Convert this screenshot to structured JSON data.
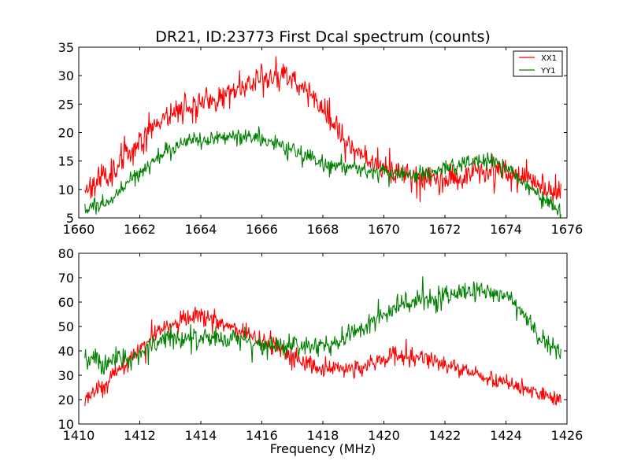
{
  "chart_data": [
    {
      "type": "line",
      "title": "DR21, ID:23773 First Dcal spectrum (counts)",
      "xlabel": "",
      "ylabel": "",
      "xlim": [
        1660,
        1676
      ],
      "ylim": [
        5,
        35
      ],
      "xticks": [
        "1660",
        "1662",
        "1664",
        "1666",
        "1668",
        "1670",
        "1672",
        "1674",
        "1676"
      ],
      "yticks": [
        "5",
        "10",
        "15",
        "20",
        "25",
        "30",
        "35"
      ],
      "legend": {
        "placement": "top-right",
        "entries": [
          "XX1",
          "YY1"
        ]
      },
      "grid": false,
      "series": [
        {
          "name": "XX1",
          "color": "#ff0000",
          "noise": 1.6,
          "x": [
            1660.2,
            1660.6,
            1661.0,
            1661.4,
            1661.8,
            1662.2,
            1662.6,
            1663.0,
            1663.4,
            1663.8,
            1664.2,
            1664.6,
            1665.0,
            1665.4,
            1665.8,
            1666.2,
            1666.6,
            1667.0,
            1667.4,
            1667.8,
            1668.2,
            1668.6,
            1669.0,
            1669.4,
            1669.8,
            1670.2,
            1670.6,
            1671.0,
            1671.4,
            1671.8,
            1672.2,
            1672.6,
            1673.0,
            1673.4,
            1673.8,
            1674.2,
            1674.6,
            1675.0,
            1675.4,
            1675.8
          ],
          "y": [
            10.2,
            11.5,
            13.0,
            15.0,
            17.5,
            20.0,
            22.0,
            23.5,
            24.5,
            25.0,
            25.3,
            26.0,
            27.0,
            28.5,
            29.5,
            29.8,
            30.0,
            29.5,
            28.0,
            25.5,
            22.5,
            19.5,
            17.5,
            16.0,
            14.5,
            13.3,
            12.5,
            12.0,
            11.8,
            11.7,
            12.0,
            12.5,
            13.0,
            13.5,
            13.5,
            13.0,
            12.0,
            10.8,
            10.0,
            9.5
          ]
        },
        {
          "name": "YY1",
          "color": "#008000",
          "noise": 0.9,
          "x": [
            1660.2,
            1660.6,
            1661.0,
            1661.4,
            1661.8,
            1662.2,
            1662.6,
            1663.0,
            1663.4,
            1663.8,
            1664.2,
            1664.6,
            1665.0,
            1665.4,
            1665.8,
            1666.2,
            1666.6,
            1667.0,
            1667.4,
            1667.8,
            1668.2,
            1668.6,
            1669.0,
            1669.4,
            1669.8,
            1670.2,
            1670.6,
            1671.0,
            1671.4,
            1671.8,
            1672.2,
            1672.6,
            1673.0,
            1673.4,
            1673.8,
            1674.2,
            1674.6,
            1675.0,
            1675.4,
            1675.8
          ],
          "y": [
            6.3,
            7.0,
            8.0,
            10.0,
            12.0,
            14.0,
            15.5,
            17.0,
            18.0,
            18.5,
            18.8,
            19.0,
            19.2,
            19.3,
            19.0,
            18.5,
            17.8,
            17.0,
            16.0,
            15.0,
            14.3,
            14.0,
            13.8,
            13.5,
            13.2,
            13.0,
            12.8,
            12.7,
            12.8,
            13.2,
            14.0,
            14.5,
            15.0,
            15.0,
            14.3,
            13.0,
            11.0,
            9.0,
            7.5,
            6.3
          ]
        }
      ]
    },
    {
      "type": "line",
      "title": "",
      "xlabel": "Frequency (MHz)",
      "ylabel": "",
      "xlim": [
        1410,
        1426
      ],
      "ylim": [
        10,
        80
      ],
      "xticks": [
        "1410",
        "1412",
        "1414",
        "1416",
        "1418",
        "1420",
        "1422",
        "1424",
        "1426"
      ],
      "yticks": [
        "10",
        "20",
        "30",
        "40",
        "50",
        "60",
        "70",
        "80"
      ],
      "grid": false,
      "series": [
        {
          "color": "#ff0000",
          "noise": 2.5,
          "x": [
            1410.2,
            1410.6,
            1411.0,
            1411.4,
            1411.8,
            1412.2,
            1412.6,
            1413.0,
            1413.4,
            1413.8,
            1414.2,
            1414.6,
            1415.0,
            1415.4,
            1415.8,
            1416.2,
            1416.6,
            1417.0,
            1417.4,
            1417.8,
            1418.2,
            1418.6,
            1419.0,
            1419.4,
            1419.8,
            1420.2,
            1420.6,
            1421.0,
            1421.4,
            1421.8,
            1422.2,
            1422.6,
            1423.0,
            1423.4,
            1423.8,
            1424.2,
            1424.6,
            1425.0,
            1425.4,
            1425.8
          ],
          "y": [
            21.0,
            24.0,
            28.0,
            33.0,
            38.0,
            43.0,
            48.0,
            51.0,
            53.0,
            54.0,
            53.5,
            52.0,
            50.0,
            48.0,
            46.0,
            43.0,
            40.0,
            37.0,
            34.5,
            33.0,
            32.5,
            32.5,
            33.0,
            34.0,
            36.0,
            37.5,
            38.0,
            38.0,
            37.0,
            35.5,
            34.0,
            32.5,
            31.0,
            29.0,
            27.5,
            26.0,
            24.5,
            23.0,
            21.5,
            21.0
          ]
        },
        {
          "color": "#008000",
          "noise": 3.0,
          "x": [
            1410.2,
            1410.6,
            1411.0,
            1411.4,
            1411.8,
            1412.2,
            1412.6,
            1413.0,
            1413.4,
            1413.8,
            1414.2,
            1414.6,
            1415.0,
            1415.4,
            1415.8,
            1416.2,
            1416.6,
            1417.0,
            1417.4,
            1417.8,
            1418.2,
            1418.6,
            1419.0,
            1419.4,
            1419.8,
            1420.2,
            1420.6,
            1421.0,
            1421.4,
            1421.8,
            1422.2,
            1422.6,
            1423.0,
            1423.4,
            1423.8,
            1424.2,
            1424.6,
            1425.0,
            1425.4,
            1425.8
          ],
          "y": [
            37.0,
            36.0,
            35.0,
            36.0,
            38.0,
            41.0,
            44.0,
            45.0,
            45.0,
            45.0,
            45.0,
            45.0,
            45.0,
            44.0,
            43.0,
            42.0,
            42.0,
            42.0,
            42.0,
            42.0,
            43.0,
            44.0,
            47.0,
            50.0,
            53.0,
            56.0,
            59.0,
            60.0,
            61.0,
            62.0,
            63.0,
            64.0,
            64.0,
            64.0,
            63.0,
            60.0,
            55.0,
            47.0,
            42.0,
            39.0
          ]
        }
      ]
    }
  ]
}
